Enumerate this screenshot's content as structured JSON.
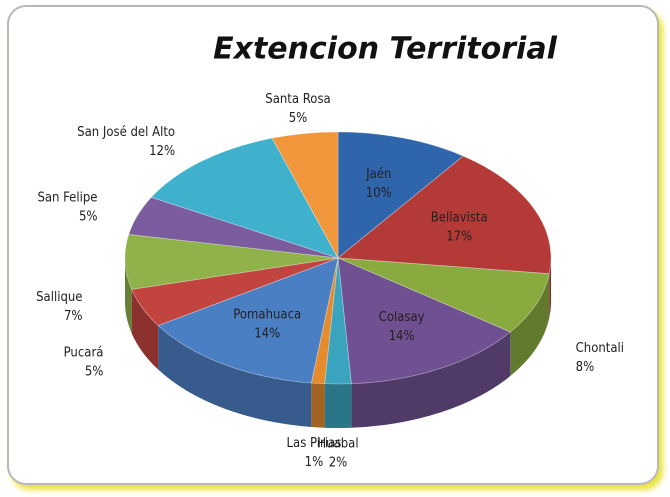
{
  "chart_data": {
    "type": "pie3d",
    "title": "Extencion Territorial",
    "categories": [
      "Jaén",
      "Bellavista",
      "Chontali",
      "Colasay",
      "Huabal",
      "Las Pirias",
      "Pomahuaca",
      "Pucará",
      "Sallique",
      "San Felipe",
      "San José del Alto",
      "Santa Rosa"
    ],
    "values": [
      10,
      17,
      8,
      14,
      2,
      1,
      14,
      5,
      7,
      5,
      12,
      5
    ],
    "value_labels": [
      "10%",
      "17%",
      "8%",
      "14%",
      "2%",
      "1%",
      "14%",
      "5%",
      "7%",
      "5%",
      "12%",
      "5%"
    ],
    "colors": [
      "#2f65aa",
      "#b43a38",
      "#88aa3f",
      "#6f5090",
      "#3aa4be",
      "#e38b2d",
      "#4b7fc3",
      "#c2443f",
      "#8fb24b",
      "#7b5c9f",
      "#40b1cd",
      "#f1963b"
    ]
  }
}
